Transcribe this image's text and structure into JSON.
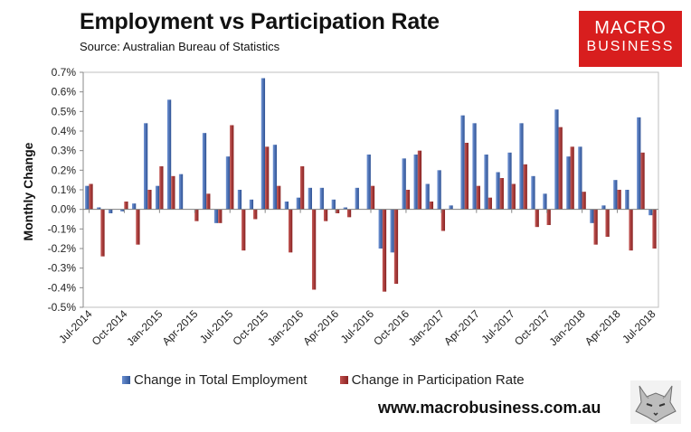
{
  "header": {
    "title": "Employment vs Participation Rate",
    "source": "Source: Australian Bureau of Statistics"
  },
  "logo": {
    "line1": "MACRO",
    "line2": "BUSINESS",
    "color": "#d81e1e"
  },
  "footer": {
    "url": "www.macrobusiness.com.au"
  },
  "colors": {
    "employment": "#3d65b0",
    "participation": "#a83232"
  },
  "chart_data": {
    "type": "bar",
    "ylabel": "Monthly Change",
    "ylim": [
      -0.5,
      0.7
    ],
    "yticks": [
      "-0.5%",
      "-0.4%",
      "-0.3%",
      "-0.2%",
      "-0.1%",
      "0.0%",
      "0.1%",
      "0.2%",
      "0.3%",
      "0.4%",
      "0.5%",
      "0.6%",
      "0.7%"
    ],
    "xticks": [
      "Jul-2014",
      "Oct-2014",
      "Jan-2015",
      "Apr-2015",
      "Jul-2015",
      "Oct-2015",
      "Jan-2016",
      "Apr-2016",
      "Jul-2016",
      "Oct-2016",
      "Jan-2017",
      "Apr-2017",
      "Jul-2017",
      "Oct-2017",
      "Jan-2018",
      "Apr-2018",
      "Jul-2018"
    ],
    "categories": [
      "Jul-2014",
      "Aug-2014",
      "Sep-2014",
      "Oct-2014",
      "Nov-2014",
      "Dec-2014",
      "Jan-2015",
      "Feb-2015",
      "Mar-2015",
      "Apr-2015",
      "May-2015",
      "Jun-2015",
      "Jul-2015",
      "Aug-2015",
      "Sep-2015",
      "Oct-2015",
      "Nov-2015",
      "Dec-2015",
      "Jan-2016",
      "Feb-2016",
      "Mar-2016",
      "Apr-2016",
      "May-2016",
      "Jun-2016",
      "Jul-2016",
      "Aug-2016",
      "Sep-2016",
      "Oct-2016",
      "Nov-2016",
      "Dec-2016",
      "Jan-2017",
      "Feb-2017",
      "Mar-2017",
      "Apr-2017",
      "May-2017",
      "Jun-2017",
      "Jul-2017",
      "Aug-2017",
      "Sep-2017",
      "Oct-2017",
      "Nov-2017",
      "Dec-2017",
      "Jan-2018",
      "Feb-2018",
      "Mar-2018",
      "Apr-2018",
      "May-2018",
      "Jun-2018",
      "Jul-2018"
    ],
    "series": [
      {
        "name": "Change in Total Employment",
        "values": [
          0.12,
          0.01,
          -0.02,
          -0.01,
          0.03,
          0.44,
          0.12,
          0.56,
          0.18,
          0.0,
          0.39,
          -0.07,
          0.27,
          0.1,
          0.05,
          0.67,
          0.33,
          0.04,
          0.06,
          0.11,
          0.11,
          0.05,
          0.01,
          0.11,
          0.28,
          -0.2,
          -0.22,
          0.26,
          0.28,
          0.13,
          0.2,
          0.02,
          0.48,
          0.44,
          0.28,
          0.19,
          0.29,
          0.44,
          0.17,
          0.08,
          0.51,
          0.27,
          0.32,
          -0.07,
          0.02,
          0.15,
          0.1,
          0.47,
          -0.03
        ]
      },
      {
        "name": "Change in Participation Rate",
        "values": [
          0.13,
          -0.24,
          0.0,
          0.04,
          -0.18,
          0.1,
          0.22,
          0.17,
          0.0,
          -0.06,
          0.08,
          -0.07,
          0.43,
          -0.21,
          -0.05,
          0.32,
          0.12,
          -0.22,
          0.22,
          -0.41,
          -0.06,
          -0.02,
          -0.04,
          0.0,
          0.12,
          -0.42,
          -0.38,
          0.1,
          0.3,
          0.04,
          -0.11,
          0.0,
          0.34,
          0.12,
          0.06,
          0.16,
          0.13,
          0.23,
          -0.09,
          -0.08,
          0.42,
          0.32,
          0.09,
          -0.18,
          -0.14,
          0.1,
          -0.21,
          0.29,
          -0.2
        ]
      }
    ]
  }
}
